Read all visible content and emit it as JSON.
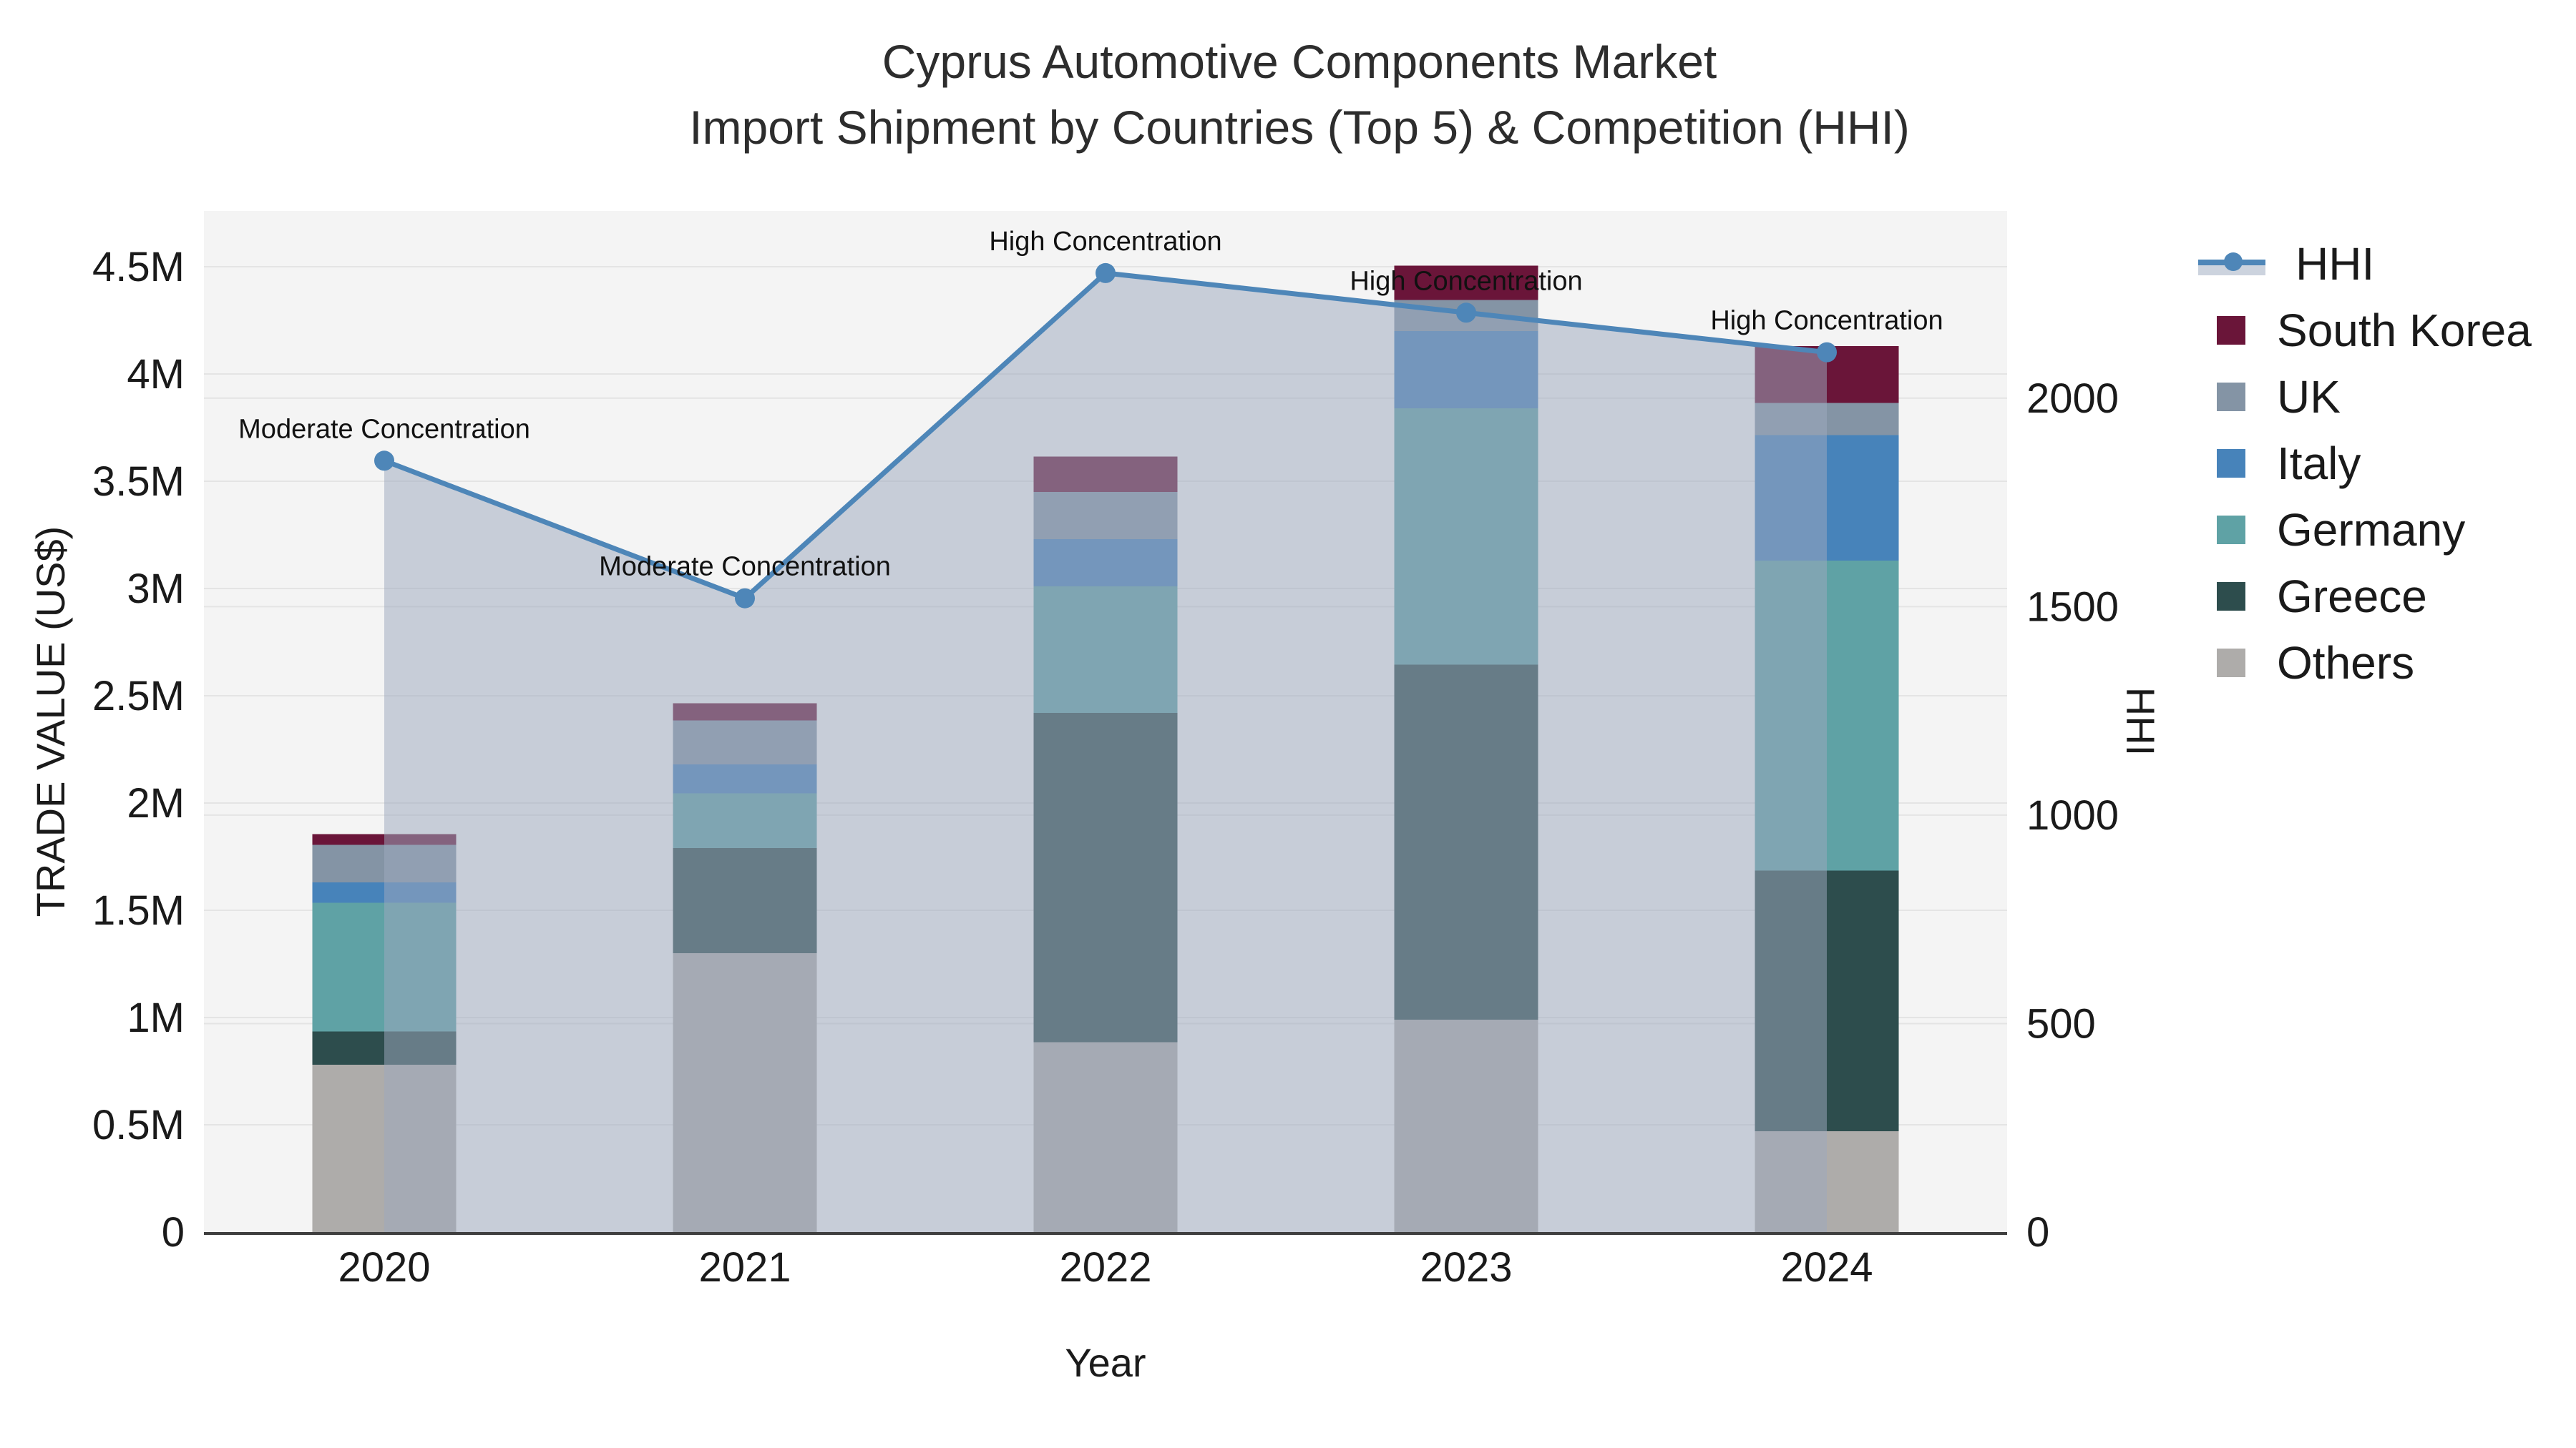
{
  "title": {
    "line1": "Cyprus Automotive Components Market",
    "line2": "Import Shipment by Countries (Top 5) & Competition (HHI)"
  },
  "axes": {
    "x": {
      "title": "Year"
    },
    "y_left": {
      "title": "TRADE VALUE (US$)",
      "tick_labels": [
        "0",
        "0.5M",
        "1M",
        "1.5M",
        "2M",
        "2.5M",
        "3M",
        "3.5M",
        "4M",
        "4.5M"
      ],
      "tick_values": [
        0,
        500000,
        1000000,
        1500000,
        2000000,
        2500000,
        3000000,
        3500000,
        4000000,
        4500000
      ],
      "range": [
        0,
        4760000
      ]
    },
    "y_right": {
      "title": "HHI",
      "tick_labels": [
        "0",
        "500",
        "1000",
        "1500",
        "2000"
      ],
      "tick_values": [
        0,
        500,
        1000,
        1500,
        2000
      ],
      "range": [
        0,
        2449
      ]
    }
  },
  "legend": {
    "items": [
      {
        "label": "HHI",
        "type": "line",
        "color": "#4e86b8",
        "band_color": "#ccd3de"
      },
      {
        "label": "South Korea",
        "type": "swatch",
        "color": "#6a1539"
      },
      {
        "label": "UK",
        "type": "swatch",
        "color": "#8494a5"
      },
      {
        "label": "Italy",
        "type": "swatch",
        "color": "#4783ba"
      },
      {
        "label": "Germany",
        "type": "swatch",
        "color": "#5fa2a5"
      },
      {
        "label": "Greece",
        "type": "swatch",
        "color": "#2d4d4d"
      },
      {
        "label": "Others",
        "type": "swatch",
        "color": "#aeacaa"
      }
    ]
  },
  "chart_data": {
    "type": "bar+line",
    "title": "Cyprus Automotive Components Market — Import Shipment by Countries (Top 5) & Competition (HHI)",
    "xlabel": "Year",
    "ylabel_left": "TRADE VALUE (US$)",
    "ylabel_right": "HHI",
    "categories": [
      "2020",
      "2021",
      "2022",
      "2023",
      "2024"
    ],
    "bar_stack_order_bottom_to_top": [
      "Others",
      "Greece",
      "Germany",
      "Italy",
      "UK",
      "South Korea"
    ],
    "bar_series": [
      {
        "name": "Others",
        "color": "#aeacaa",
        "values": [
          780000,
          1300000,
          885000,
          990000,
          470000
        ]
      },
      {
        "name": "Greece",
        "color": "#2d4d4d",
        "values": [
          155000,
          490000,
          1535000,
          1655000,
          1215000
        ]
      },
      {
        "name": "Germany",
        "color": "#5fa2a5",
        "values": [
          600000,
          255000,
          590000,
          1195000,
          1445000
        ]
      },
      {
        "name": "Italy",
        "color": "#4783ba",
        "values": [
          95000,
          135000,
          220000,
          360000,
          585000
        ]
      },
      {
        "name": "UK",
        "color": "#8494a5",
        "values": [
          175000,
          205000,
          220000,
          145000,
          150000
        ]
      },
      {
        "name": "South Korea",
        "color": "#6a1539",
        "values": [
          50000,
          80000,
          165000,
          160000,
          265000
        ]
      }
    ],
    "bar_totals": [
      1855000,
      2465000,
      3615000,
      4505000,
      4130000
    ],
    "line_series": {
      "name": "HHI",
      "color": "#4e86b8",
      "fill_color": "rgba(157,169,189,0.52)",
      "values": [
        1850,
        1520,
        2300,
        2205,
        2110
      ]
    },
    "annotations": [
      {
        "category": "2020",
        "text": "Moderate Concentration"
      },
      {
        "category": "2021",
        "text": "Moderate Concentration"
      },
      {
        "category": "2022",
        "text": "High Concentration"
      },
      {
        "category": "2023",
        "text": "High Concentration"
      },
      {
        "category": "2024",
        "text": "High Concentration"
      }
    ],
    "legend_position": "right",
    "grid": true,
    "plot_bg": "#f4f4f4",
    "grid_color": "#e4e4e4",
    "axis_line_color": "#3f3f3f"
  }
}
